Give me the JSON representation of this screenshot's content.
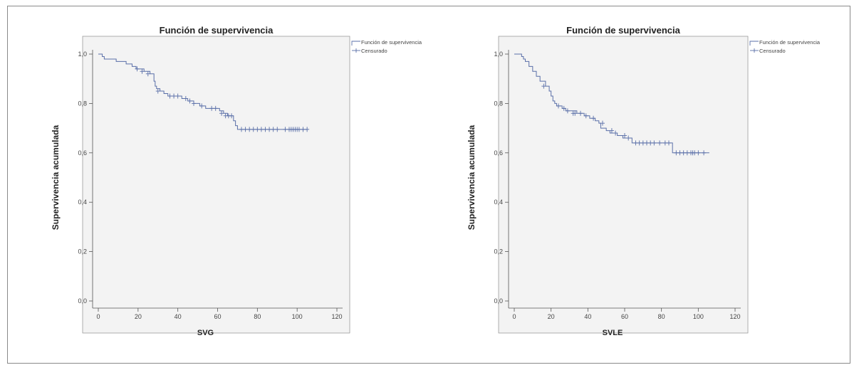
{
  "chart_data": [
    {
      "type": "line",
      "title": "Función de supervivencia",
      "xlabel": "SVG",
      "ylabel": "Supervivencia acumulada",
      "xlim": [
        0,
        120
      ],
      "ylim": [
        0,
        1
      ],
      "xticks": [
        "0",
        "20",
        "40",
        "60",
        "80",
        "100",
        "120"
      ],
      "yticks": [
        "0,0",
        "0,2",
        "0,4",
        "0,6",
        "0,8",
        "1,0"
      ],
      "grid": false,
      "legend": "top-right",
      "series": [
        {
          "name": "Función de supervivencia",
          "color": "#5a6fa8",
          "steps": [
            [
              0,
              1.0
            ],
            [
              2,
              0.99
            ],
            [
              3,
              0.98
            ],
            [
              9,
              0.97
            ],
            [
              14,
              0.96
            ],
            [
              17,
              0.95
            ],
            [
              19,
              0.94
            ],
            [
              23,
              0.93
            ],
            [
              26,
              0.92
            ],
            [
              28,
              0.89
            ],
            [
              28.6,
              0.87
            ],
            [
              29.3,
              0.86
            ],
            [
              31,
              0.85
            ],
            [
              33,
              0.84
            ],
            [
              35,
              0.83
            ],
            [
              42,
              0.82
            ],
            [
              45,
              0.81
            ],
            [
              48,
              0.8
            ],
            [
              51,
              0.79
            ],
            [
              54,
              0.78
            ],
            [
              61,
              0.77
            ],
            [
              63,
              0.76
            ],
            [
              65,
              0.75
            ],
            [
              68,
              0.73
            ],
            [
              69,
              0.71
            ],
            [
              70,
              0.695
            ],
            [
              105,
              0.695
            ]
          ]
        },
        {
          "name": "Censurado",
          "color": "#5a6fa8",
          "x": [
            19.5,
            22,
            25,
            30,
            36,
            38,
            40,
            44,
            46,
            48,
            52,
            57,
            59,
            62,
            64,
            65.5,
            67,
            72,
            74,
            76,
            78,
            80,
            82,
            84,
            86,
            88,
            90,
            94,
            96,
            97,
            98,
            99,
            100,
            101,
            103,
            105
          ],
          "y": [
            0.94,
            0.93,
            0.92,
            0.85,
            0.83,
            0.83,
            0.83,
            0.82,
            0.81,
            0.8,
            0.79,
            0.78,
            0.78,
            0.76,
            0.75,
            0.75,
            0.75,
            0.695,
            0.695,
            0.695,
            0.695,
            0.695,
            0.695,
            0.695,
            0.695,
            0.695,
            0.695,
            0.695,
            0.695,
            0.695,
            0.695,
            0.695,
            0.695,
            0.695,
            0.695,
            0.695
          ]
        }
      ]
    },
    {
      "type": "line",
      "title": "Función de supervivencia",
      "xlabel": "SVLE",
      "ylabel": "Supervivencia acumulada",
      "xlim": [
        0,
        120
      ],
      "ylim": [
        0,
        1
      ],
      "xticks": [
        "0",
        "20",
        "40",
        "60",
        "80",
        "100",
        "120"
      ],
      "yticks": [
        "0,0",
        "0,2",
        "0,4",
        "0,6",
        "0,8",
        "1,0"
      ],
      "grid": false,
      "legend": "top-right",
      "series": [
        {
          "name": "Función de supervivencia",
          "color": "#5a6fa8",
          "steps": [
            [
              0,
              1.0
            ],
            [
              4,
              0.99
            ],
            [
              5,
              0.98
            ],
            [
              6,
              0.97
            ],
            [
              8,
              0.95
            ],
            [
              10,
              0.93
            ],
            [
              12,
              0.91
            ],
            [
              14,
              0.89
            ],
            [
              17,
              0.87
            ],
            [
              19,
              0.85
            ],
            [
              20,
              0.83
            ],
            [
              21,
              0.81
            ],
            [
              22,
              0.8
            ],
            [
              23,
              0.79
            ],
            [
              26,
              0.78
            ],
            [
              28,
              0.77
            ],
            [
              34,
              0.76
            ],
            [
              38,
              0.75
            ],
            [
              41,
              0.74
            ],
            [
              44,
              0.73
            ],
            [
              46,
              0.72
            ],
            [
              47,
              0.7
            ],
            [
              50,
              0.69
            ],
            [
              52,
              0.68
            ],
            [
              56,
              0.67
            ],
            [
              59,
              0.66
            ],
            [
              64,
              0.64
            ],
            [
              86,
              0.6
            ],
            [
              106,
              0.6
            ]
          ]
        },
        {
          "name": "Censurado",
          "color": "#5a6fa8",
          "x": [
            16,
            24,
            27,
            29,
            32,
            33,
            36,
            39,
            43,
            48,
            53,
            55,
            60,
            62,
            66,
            68,
            70,
            72,
            74,
            76,
            79,
            82,
            84,
            88,
            90,
            92,
            94,
            96,
            97,
            98,
            100,
            103
          ],
          "y": [
            0.87,
            0.79,
            0.78,
            0.77,
            0.76,
            0.76,
            0.76,
            0.75,
            0.74,
            0.72,
            0.69,
            0.68,
            0.67,
            0.66,
            0.64,
            0.64,
            0.64,
            0.64,
            0.64,
            0.64,
            0.64,
            0.64,
            0.64,
            0.6,
            0.6,
            0.6,
            0.6,
            0.6,
            0.6,
            0.6,
            0.6,
            0.6
          ]
        }
      ]
    }
  ]
}
